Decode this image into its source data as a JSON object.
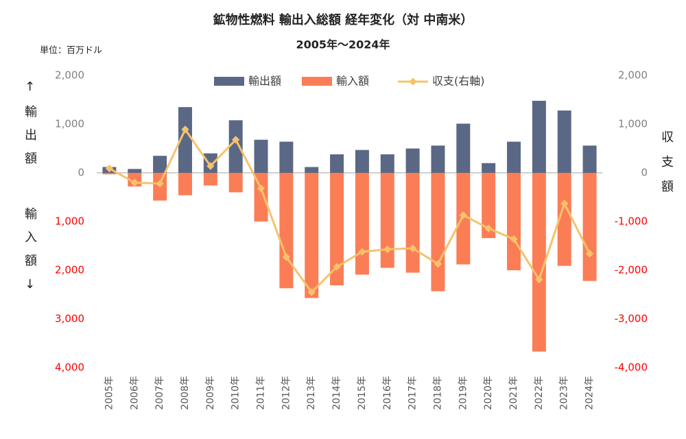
{
  "chart_data": {
    "type": "bar",
    "title": "鉱物性燃料 輸出入総額 経年変化（対 中南米）",
    "subtitle": "2005年～2024年",
    "unit_label": "単位：百万ドル",
    "y_label_top": "↑輸出額",
    "y_label_bottom": "輸入額↓",
    "y2_label": "収支額",
    "categories": [
      "2005年",
      "2006年",
      "2007年",
      "2008年",
      "2009年",
      "2010年",
      "2011年",
      "2012年",
      "2013年",
      "2014年",
      "2015年",
      "2016年",
      "2017年",
      "2018年",
      "2019年",
      "2020年",
      "2021年",
      "2022年",
      "2023年",
      "2024年"
    ],
    "series": [
      {
        "name": "輸出額",
        "type": "bar",
        "color": "#5a6885",
        "values": [
          120,
          80,
          350,
          1350,
          400,
          1080,
          680,
          640,
          120,
          380,
          470,
          380,
          500,
          560,
          1010,
          200,
          640,
          1480,
          1280,
          560
        ]
      },
      {
        "name": "輸入額",
        "type": "bar",
        "color": "#fb7d56",
        "values": [
          -30,
          -280,
          -570,
          -460,
          -260,
          -400,
          -1000,
          -2370,
          -2570,
          -2310,
          -2090,
          -1950,
          -2050,
          -2430,
          -1880,
          -1340,
          -2000,
          -3670,
          -1910,
          -2220
        ]
      },
      {
        "name": "収支(右軸)",
        "type": "line",
        "axis": "y2",
        "color": "#f6c26c",
        "values": [
          90,
          -200,
          -220,
          890,
          140,
          680,
          -320,
          -1730,
          -2450,
          -1930,
          -1620,
          -1570,
          -1550,
          -1870,
          -870,
          -1140,
          -1360,
          -2190,
          -630,
          -1660
        ]
      }
    ],
    "ylim": [
      -4000,
      2000
    ],
    "yticks": [
      {
        "value": 2000,
        "label": "2,000"
      },
      {
        "value": 1000,
        "label": "1,000"
      },
      0,
      {
        "value": -1000,
        "label": "1,000"
      },
      {
        "value": -2000,
        "label": "2,000"
      },
      {
        "value": -3000,
        "label": "3,000"
      },
      {
        "value": -4000,
        "label": "4,000"
      }
    ],
    "y2lim": [
      -4000,
      2000
    ],
    "y2ticks": [
      {
        "value": 2000,
        "label": "2,000"
      },
      {
        "value": 1000,
        "label": "1,000"
      },
      0,
      {
        "value": -1000,
        "label": "-1,000"
      },
      {
        "value": -2000,
        "label": "-2,000"
      },
      {
        "value": -3000,
        "label": "-3,000"
      },
      {
        "value": -4000,
        "label": "-4,000"
      }
    ],
    "negative_tick_color": "#ff0000",
    "tick_color": "#808080",
    "legend": "top"
  }
}
